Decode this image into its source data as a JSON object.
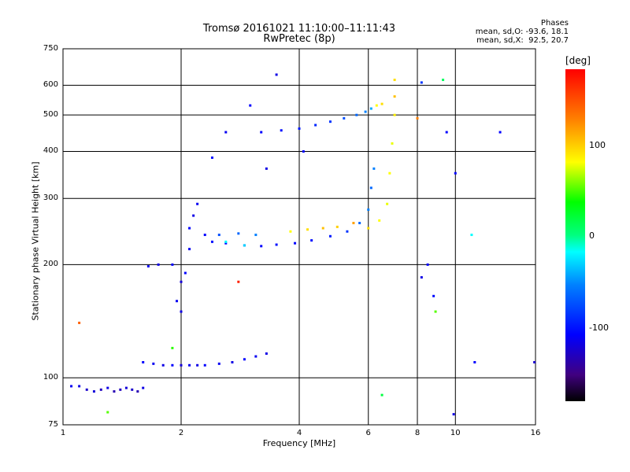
{
  "chart_data": {
    "type": "scatter",
    "title": "Tromsø 20161021 11:10:00–11:11:43",
    "subtitle": "RwPretec (8p)",
    "xlabel": "Frequency [MHz]",
    "ylabel": "Stationary phase Virtual Height [km]",
    "x_scale": "log",
    "y_scale": "log",
    "xlim": [
      1,
      16
    ],
    "ylim": [
      75,
      750
    ],
    "x_ticks": [
      "1",
      "2",
      "4",
      "6",
      "8",
      "10",
      "16"
    ],
    "y_ticks": [
      "75",
      "100",
      "200",
      "300",
      "400",
      "500",
      "600",
      "750"
    ],
    "grid": true,
    "phases_header": "Phases",
    "phases_stats": [
      "mean, sd,O: -93.6, 18.1",
      "mean, sd,X:  92.5, 20.7"
    ],
    "colorbar": {
      "title": "[deg]",
      "ticks": [
        "100",
        "0",
        "-100"
      ],
      "range": [
        -180,
        180
      ],
      "colormap": "rainbow"
    },
    "series": [
      {
        "points": [
          [
            1.05,
            95,
            -105
          ],
          [
            1.1,
            95,
            -110
          ],
          [
            1.15,
            93,
            -120
          ],
          [
            1.2,
            92,
            -115
          ],
          [
            1.25,
            93,
            -125
          ],
          [
            1.3,
            94,
            -110
          ],
          [
            1.35,
            92,
            -130
          ],
          [
            1.4,
            93,
            -125
          ],
          [
            1.45,
            94,
            -115
          ],
          [
            1.5,
            93,
            -120
          ],
          [
            1.55,
            92,
            -130
          ],
          [
            1.6,
            94,
            -110
          ],
          [
            1.6,
            110,
            -100
          ],
          [
            1.7,
            109,
            -105
          ],
          [
            1.8,
            108,
            -110
          ],
          [
            1.9,
            108,
            -100
          ],
          [
            2.0,
            108,
            -115
          ],
          [
            2.1,
            108,
            -105
          ],
          [
            2.2,
            108,
            -110
          ],
          [
            2.3,
            108,
            -100
          ],
          [
            2.5,
            109,
            -105
          ],
          [
            2.7,
            110,
            -110
          ],
          [
            2.9,
            112,
            -100
          ],
          [
            3.1,
            114,
            -105
          ],
          [
            3.3,
            116,
            -110
          ],
          [
            1.65,
            198,
            -105
          ],
          [
            1.75,
            200,
            -110
          ],
          [
            1.9,
            200,
            -100
          ],
          [
            1.95,
            160,
            -105
          ],
          [
            2.0,
            180,
            -115
          ],
          [
            2.05,
            190,
            -100
          ],
          [
            2.0,
            150,
            -110
          ],
          [
            2.1,
            220,
            -105
          ],
          [
            2.1,
            250,
            -100
          ],
          [
            2.15,
            270,
            -110
          ],
          [
            2.2,
            290,
            -105
          ],
          [
            2.3,
            240,
            -100
          ],
          [
            2.4,
            230,
            -95
          ],
          [
            2.6,
            228,
            -100
          ],
          [
            2.9,
            225,
            -105
          ],
          [
            3.2,
            224,
            -100
          ],
          [
            3.5,
            226,
            -95
          ],
          [
            3.9,
            228,
            -100
          ],
          [
            4.3,
            232,
            -95
          ],
          [
            4.8,
            238,
            -90
          ],
          [
            5.3,
            245,
            -80
          ],
          [
            5.7,
            258,
            -60
          ],
          [
            6.0,
            280,
            -50
          ],
          [
            6.1,
            320,
            -60
          ],
          [
            6.2,
            360,
            -50
          ],
          [
            3.8,
            245,
            100
          ],
          [
            4.2,
            248,
            110
          ],
          [
            4.6,
            250,
            120
          ],
          [
            5.0,
            252,
            115
          ],
          [
            5.5,
            258,
            130
          ],
          [
            6.0,
            250,
            110
          ],
          [
            6.4,
            262,
            100
          ],
          [
            6.7,
            290,
            95
          ],
          [
            6.8,
            350,
            100
          ],
          [
            6.9,
            420,
            95
          ],
          [
            7.0,
            500,
            105
          ],
          [
            7.0,
            560,
            120
          ],
          [
            7.0,
            620,
            110
          ],
          [
            2.5,
            240,
            -70
          ],
          [
            2.8,
            242,
            -60
          ],
          [
            3.1,
            240,
            -50
          ],
          [
            2.6,
            230,
            -20
          ],
          [
            2.9,
            225,
            -30
          ],
          [
            3.2,
            450,
            -100
          ],
          [
            3.6,
            455,
            -95
          ],
          [
            4.0,
            460,
            -90
          ],
          [
            4.4,
            470,
            -85
          ],
          [
            4.8,
            480,
            -80
          ],
          [
            5.2,
            490,
            -70
          ],
          [
            5.6,
            500,
            -60
          ],
          [
            5.9,
            510,
            -50
          ],
          [
            6.1,
            520,
            -40
          ],
          [
            6.3,
            530,
            100
          ],
          [
            6.5,
            535,
            110
          ],
          [
            3.0,
            530,
            -100
          ],
          [
            3.5,
            640,
            -110
          ],
          [
            2.6,
            450,
            -105
          ],
          [
            4.1,
            400,
            -100
          ],
          [
            3.3,
            360,
            -110
          ],
          [
            2.4,
            385,
            -95
          ],
          [
            1.3,
            81,
            60
          ],
          [
            1.1,
            140,
            150
          ],
          [
            2.8,
            180,
            170
          ],
          [
            1.9,
            120,
            50
          ],
          [
            6.5,
            90,
            20
          ],
          [
            8.2,
            185,
            -110
          ],
          [
            8.5,
            200,
            -100
          ],
          [
            8.8,
            165,
            -95
          ],
          [
            8.9,
            150,
            60
          ],
          [
            9.5,
            450,
            -100
          ],
          [
            9.9,
            80,
            -110
          ],
          [
            10.0,
            350,
            -100
          ],
          [
            11.0,
            240,
            -20
          ],
          [
            11.2,
            110,
            -100
          ],
          [
            13.0,
            450,
            -100
          ],
          [
            15.9,
            110,
            -120
          ],
          [
            8.2,
            610,
            -80
          ],
          [
            9.3,
            620,
            10
          ],
          [
            8.0,
            490,
            140
          ]
        ]
      }
    ]
  }
}
